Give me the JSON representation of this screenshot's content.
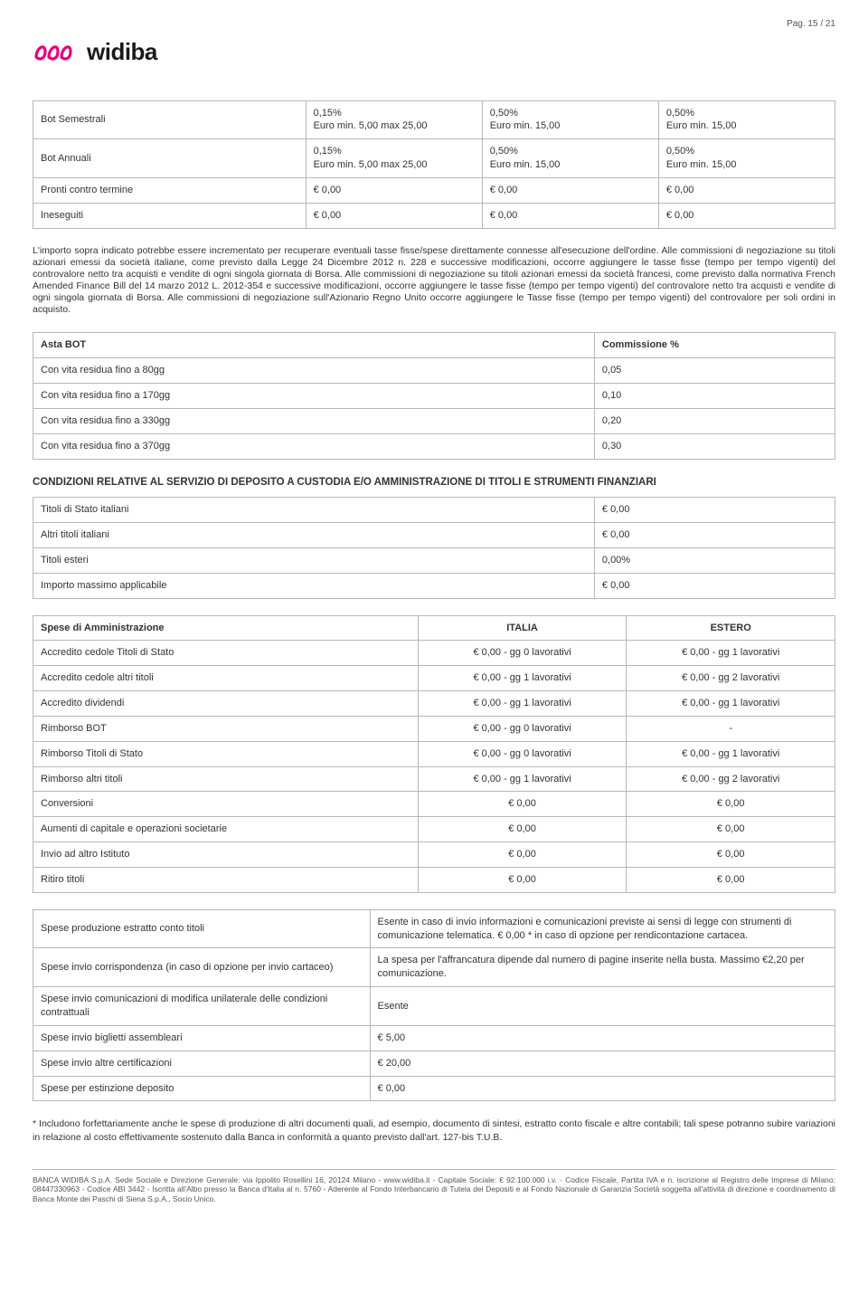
{
  "page_number": "Pag. 15 / 21",
  "brand": {
    "name": "widiba",
    "accent": "#e6007e"
  },
  "t1": {
    "rows": [
      [
        "Bot Semestrali",
        "0,15%\nEuro min. 5,00 max 25,00",
        "0,50%\nEuro min. 15,00",
        "0,50%\nEuro min. 15,00"
      ],
      [
        "Bot Annuali",
        "0,15%\nEuro min. 5,00 max 25,00",
        "0,50%\nEuro min. 15,00",
        "0,50%\nEuro min. 15,00"
      ],
      [
        "Pronti contro termine",
        "€ 0,00",
        "€ 0,00",
        "€ 0,00"
      ],
      [
        "Ineseguiti",
        "€ 0,00",
        "€ 0,00",
        "€ 0,00"
      ]
    ]
  },
  "body_text": "L'importo sopra indicato potrebbe essere incrementato per recuperare eventuali tasse fisse/spese direttamente connesse all'esecuzione dell'ordine. Alle commissioni di negoziazione su titoli azionari emessi da società italiane, come previsto dalla Legge 24 Dicembre 2012 n. 228 e successive modificazioni, occorre aggiungere le tasse fisse (tempo per tempo vigenti) del controvalore netto tra acquisti e vendite di ogni singola giornata di Borsa. Alle commissioni di negoziazione su titoli azionari emessi da società francesi, come previsto dalla normativa French Amended Finance Bill del 14 marzo 2012 L. 2012-354 e successive modificazioni, occorre aggiungere le tasse fisse (tempo per tempo vigenti) del controvalore netto tra acquisti e vendite di ogni singola giornata di Borsa. Alle commissioni di negoziazione sull'Azionario Regno Unito occorre aggiungere le Tasse fisse (tempo per tempo vigenti) del controvalore per soli ordini in acquisto.",
  "t2": {
    "header": [
      "Asta BOT",
      "Commissione %"
    ],
    "rows": [
      [
        "Con vita residua fino a 80gg",
        "0,05"
      ],
      [
        "Con vita residua fino a 170gg",
        "0,10"
      ],
      [
        "Con vita residua fino a 330gg",
        "0,20"
      ],
      [
        "Con vita residua fino a 370gg",
        "0,30"
      ]
    ]
  },
  "section_t3": "CONDIZIONI RELATIVE AL SERVIZIO DI DEPOSITO A CUSTODIA E/O AMMINISTRAZIONE DI TITOLI E STRUMENTI FINANZIARI",
  "t3": {
    "rows": [
      [
        "Titoli di Stato italiani",
        "€ 0,00"
      ],
      [
        "Altri titoli italiani",
        "€ 0,00"
      ],
      [
        "Titoli esteri",
        "0,00%"
      ],
      [
        "Importo massimo applicabile",
        "€ 0,00"
      ]
    ]
  },
  "t4": {
    "header": [
      "Spese di Amministrazione",
      "ITALIA",
      "ESTERO"
    ],
    "rows": [
      [
        "Accredito cedole Titoli di Stato",
        "€ 0,00 - gg 0 lavorativi",
        "€ 0,00 - gg 1 lavorativi"
      ],
      [
        "Accredito cedole altri titoli",
        "€ 0,00 - gg 1 lavorativi",
        "€ 0,00 - gg 2 lavorativi"
      ],
      [
        "Accredito dividendi",
        "€ 0,00 - gg 1 lavorativi",
        "€ 0,00 - gg 1 lavorativi"
      ],
      [
        "Rimborso BOT",
        "€ 0,00 - gg 0 lavorativi",
        "-"
      ],
      [
        "Rimborso Titoli di Stato",
        "€ 0,00 - gg 0 lavorativi",
        "€ 0,00 - gg 1 lavorativi"
      ],
      [
        "Rimborso altri titoli",
        "€ 0,00 - gg 1 lavorativi",
        "€ 0,00 - gg 2 lavorativi"
      ],
      [
        "Conversioni",
        "€ 0,00",
        "€ 0,00"
      ],
      [
        "Aumenti di capitale e operazioni societarie",
        "€ 0,00",
        "€ 0,00"
      ],
      [
        "Invio ad altro Istituto",
        "€ 0,00",
        "€ 0,00"
      ],
      [
        "Ritiro titoli",
        "€ 0,00",
        "€ 0,00"
      ]
    ]
  },
  "t5": {
    "rows": [
      [
        "Spese produzione estratto conto titoli",
        "Esente in caso di invio informazioni e comunicazioni previste ai sensi di legge con strumenti di comunicazione telematica. € 0,00 *  in caso di opzione per rendicontazione cartacea."
      ],
      [
        "Spese invio corrispondenza (in caso di opzione per invio cartaceo)",
        "La spesa per l'affrancatura dipende dal numero di pagine inserite nella busta. Massimo €2,20 per comunicazione."
      ],
      [
        "Spese invio comunicazioni di modifica unilaterale delle condizioni contrattuali",
        "Esente"
      ],
      [
        "Spese invio biglietti assembleari",
        "€ 5,00"
      ],
      [
        "Spese invio altre certificazioni",
        "€ 20,00"
      ],
      [
        "Spese per estinzione deposito",
        "€ 0,00"
      ]
    ]
  },
  "note": "* Includono forfettariamente anche le spese di produzione di altri documenti quali, ad esempio, documento di sintesi, estratto conto fiscale e altre contabili; tali spese potranno subire variazioni in relazione al costo effettivamente sostenuto dalla Banca in conformità a quanto previsto dall'art. 127-bis T.U.B.",
  "footer": "BANCA WIDIBA S.p.A. Sede Sociale e Direzione Generale: via Ippolito Rosellini 16,  20124 Milano - www.widiba.it - Capitale Sociale: € 92.100.000 i.v. - Codice Fiscale, Partita IVA e n. iscrizione al Registro delle Imprese di Milano: 08447330963 - Codice ABI 3442 - Iscritta all'Albo presso la Banca d'Italia al n. 5760 - Aderente al Fondo Interbancario di Tutela dei Depositi e al Fondo Nazionale di Garanzia Società soggetta all'attività di direzione e coordinamento di Banca Monte dei Paschi di Siena S.p.A., Socio Unico."
}
